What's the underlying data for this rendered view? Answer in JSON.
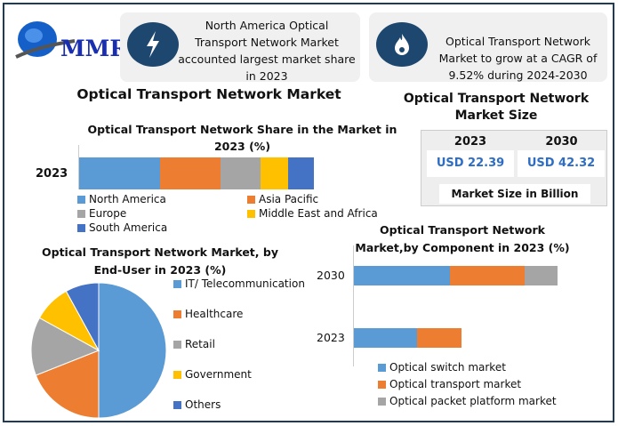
{
  "logo": {
    "text": "MMR"
  },
  "cards": [
    {
      "icon": "lightning-icon",
      "text": "North America Optical Transport Network Market accounted largest market share in 2023"
    },
    {
      "icon": "flame-icon",
      "text": "Optical Transport Network Market to grow at a CAGR of 9.52% during 2024-2030"
    }
  ],
  "main_title": "Optical Transport Network Market",
  "size": {
    "title": "Optical Transport Network Market Size",
    "years": [
      "2023",
      "2030"
    ],
    "values": [
      "USD 22.39",
      "USD 42.32"
    ],
    "footer": "Market Size in Billion"
  },
  "colors": {
    "blue": "#5b9bd5",
    "orange": "#ed7d31",
    "gray": "#a5a5a5",
    "yellow": "#ffc000",
    "darkblue": "#4472c4"
  },
  "chart_data": [
    {
      "type": "bar",
      "stacked": true,
      "orientation": "horizontal",
      "title": "Optical Transport Network Share in the Market in 2023 (%)",
      "categories": [
        "2023"
      ],
      "series": [
        {
          "name": "North America",
          "values": [
            34.5
          ]
        },
        {
          "name": "Asia Pacific",
          "values": [
            25.8
          ]
        },
        {
          "name": "Europe",
          "values": [
            17
          ]
        },
        {
          "name": "Middle East and Africa",
          "values": [
            11.7
          ]
        },
        {
          "name": "South America",
          "values": [
            11
          ]
        }
      ],
      "legend": "bottom"
    },
    {
      "type": "pie",
      "title": "Optical Transport Network Market, by End-User in 2023 (%)",
      "labels": [
        "IT/ Telecommunication",
        "Healthcare",
        "Retail",
        "Government",
        "Others"
      ],
      "values": [
        50,
        19,
        14,
        9,
        8
      ],
      "legend": "right"
    },
    {
      "type": "bar",
      "stacked": true,
      "orientation": "horizontal",
      "title": "Optical Transport Network Market,by Component in 2023 (%)",
      "categories": [
        "2030",
        "2023"
      ],
      "series": [
        {
          "name": "Optical switch market",
          "values": [
            47,
            31
          ]
        },
        {
          "name": "Optical transport market",
          "values": [
            37,
            22
          ]
        },
        {
          "name": "Optical packet platform market",
          "values": [
            16,
            0
          ]
        }
      ],
      "xlim": [
        0,
        100
      ],
      "legend": "bottom"
    }
  ]
}
